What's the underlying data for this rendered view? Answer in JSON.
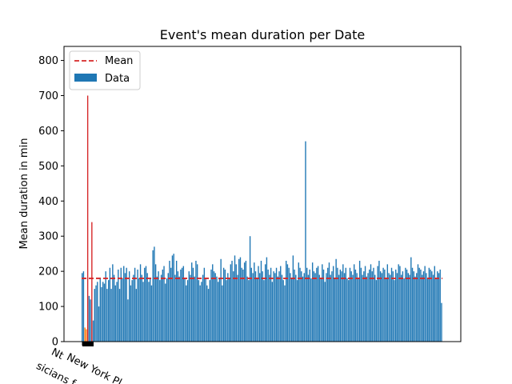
{
  "chart_data": {
    "type": "bar",
    "title": "Event's mean duration per Date",
    "xlabel": "",
    "ylabel": "Mean duration in min",
    "ylim": [
      0,
      840
    ],
    "yticks": [
      0,
      100,
      200,
      300,
      400,
      500,
      600,
      700,
      800
    ],
    "grid": false,
    "legend_position": "top-left",
    "legend": {
      "mean_label": "Mean",
      "data_label": "Data"
    },
    "mean": 180,
    "colors": {
      "bars": "#1f77b4",
      "mean_line": "#d62728",
      "outlier_red": "#d62728",
      "outlier_orange": "#ff7f0e"
    },
    "x_tick_fragments": [
      "sicians f",
      "New York Pl",
      "Nt"
    ],
    "series": [
      {
        "name": "Data",
        "values": [
          195,
          200,
          40,
          35,
          700,
          130,
          120,
          340,
          60,
          150,
          160,
          170,
          100,
          180,
          155,
          170,
          165,
          200,
          150,
          175,
          210,
          150,
          220,
          190,
          160,
          170,
          205,
          150,
          210,
          180,
          215,
          195,
          210,
          120,
          200,
          160,
          175,
          190,
          210,
          150,
          205,
          180,
          220,
          190,
          170,
          210,
          215,
          195,
          170,
          180,
          160,
          260,
          270,
          220,
          185,
          200,
          175,
          190,
          205,
          215,
          165,
          180,
          195,
          230,
          210,
          245,
          250,
          190,
          230,
          200,
          185,
          205,
          210,
          215,
          180,
          160,
          175,
          200,
          190,
          225,
          210,
          185,
          230,
          220,
          175,
          160,
          170,
          190,
          210,
          180,
          160,
          150,
          175,
          205,
          220,
          200,
          195,
          185,
          170,
          180,
          235,
          160,
          210,
          205,
          175,
          195,
          180,
          220,
          230,
          200,
          245,
          220,
          190,
          235,
          240,
          210,
          205,
          225,
          230,
          185,
          175,
          300,
          210,
          195,
          225,
          200,
          180,
          215,
          195,
          230,
          200,
          175,
          220,
          240,
          205,
          190,
          210,
          170,
          200,
          195,
          210,
          185,
          200,
          215,
          190,
          175,
          160,
          230,
          220,
          210,
          195,
          180,
          245,
          205,
          190,
          175,
          225,
          210,
          200,
          185,
          195,
          570,
          210,
          190,
          205,
          180,
          225,
          200,
          195,
          210,
          215,
          190,
          180,
          220,
          205,
          170,
          195,
          210,
          225,
          190,
          200,
          215,
          180,
          235,
          210,
          190,
          205,
          200,
          220,
          195,
          210,
          180,
          175,
          210,
          200,
          190,
          220,
          205,
          195,
          180,
          230,
          210,
          190,
          200,
          215,
          185,
          195,
          205,
          220,
          200,
          210,
          190,
          175,
          215,
          230,
          200,
          195,
          210,
          205,
          180,
          220,
          195,
          190,
          210,
          200,
          175,
          205,
          195,
          220,
          215,
          190,
          200,
          180,
          210,
          205,
          195,
          190,
          240,
          210,
          200,
          185,
          195,
          220,
          210,
          205,
          190,
          200,
          215,
          195,
          180,
          210,
          205,
          200,
          190,
          215,
          180,
          200,
          195,
          205,
          110
        ]
      }
    ]
  }
}
